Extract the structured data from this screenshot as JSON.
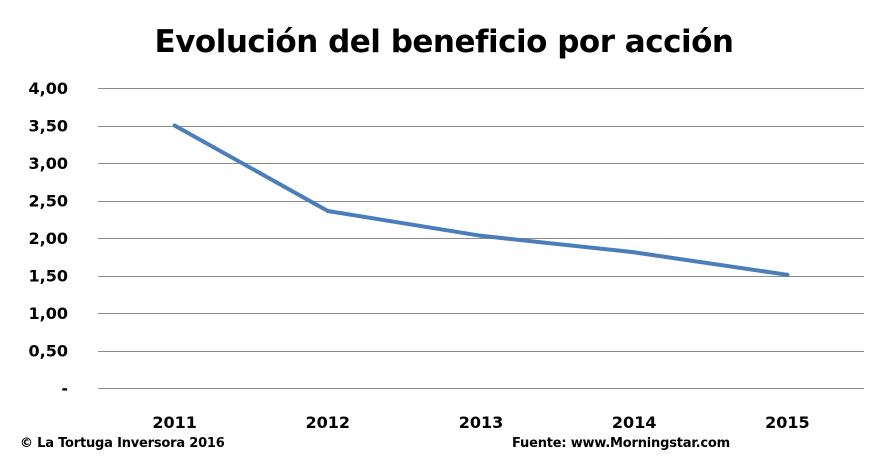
{
  "chart_data": {
    "type": "line",
    "title": "Evolución del beneficio por acción",
    "categories": [
      "2011",
      "2012",
      "2013",
      "2014",
      "2015"
    ],
    "series": [
      {
        "values": [
          3.5,
          2.36,
          2.03,
          1.81,
          1.51
        ]
      }
    ],
    "ylim": [
      0,
      4
    ],
    "y_ticks": [
      0,
      0.5,
      1,
      1.5,
      2,
      2.5,
      3,
      3.5,
      4
    ],
    "y_tick_labels": [
      "-",
      "0,50",
      "1,00",
      "1,50",
      "2,00",
      "2,50",
      "3,00",
      "3,50",
      "4,00"
    ],
    "grid": true,
    "legend": "none",
    "line_color": "#4a7ebb"
  },
  "footer": {
    "copyright": "© La Tortuga Inversora 2016",
    "source": "Fuente: www.Morningstar.com"
  }
}
